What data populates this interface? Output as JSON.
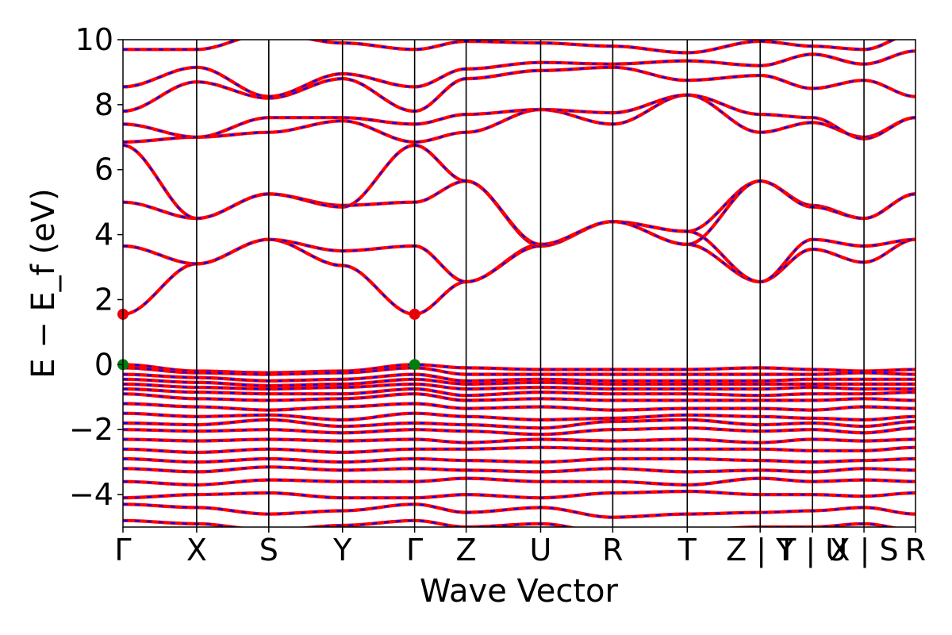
{
  "chart_data": {
    "type": "line",
    "xlabel": "Wave Vector",
    "ylabel": "E − E_f (eV)",
    "ylim": [
      -5,
      10
    ],
    "yticks": [
      -4,
      -2,
      0,
      2,
      4,
      6,
      8,
      10
    ],
    "kpoints": [
      {
        "label": "Γ",
        "x": 0.0
      },
      {
        "label": "X",
        "x": 0.93
      },
      {
        "label": "S",
        "x": 1.84
      },
      {
        "label": "Y",
        "x": 2.77
      },
      {
        "label": "Γ",
        "x": 3.68
      },
      {
        "label": "Z",
        "x": 4.33
      },
      {
        "label": "U",
        "x": 5.27
      },
      {
        "label": "R",
        "x": 6.18
      },
      {
        "label": "T",
        "x": 7.12
      },
      {
        "label": "Z | Y",
        "x": 8.04
      },
      {
        "label": "T | U",
        "x": 8.7
      },
      {
        "label": "X | S",
        "x": 9.35
      },
      {
        "label": "R",
        "x": 10.0
      }
    ],
    "xrange": [
      0,
      10.0
    ],
    "spin_up_color": "#ff0000",
    "spin_down_color": "#0000ff",
    "marker_colors": {
      "cbm": "#e8000b",
      "vbm": "#00800a"
    },
    "cbm_points": [
      {
        "x": 0.0,
        "y": 1.55
      },
      {
        "x": 3.68,
        "y": 1.55
      }
    ],
    "vbm_points": [
      {
        "x": 0.0,
        "y": 0.0
      },
      {
        "x": 3.68,
        "y": 0.0
      }
    ],
    "conduction_bands": [
      [
        1.55,
        3.1,
        3.85,
        3.05,
        1.55,
        2.55,
        3.7,
        4.4,
        3.7,
        2.55,
        3.55,
        3.15,
        3.85,
        4.4
      ],
      [
        3.65,
        3.1,
        3.85,
        3.5,
        3.65,
        2.55,
        3.65,
        4.4,
        4.1,
        2.55,
        3.85,
        3.65,
        3.85,
        4.4
      ],
      [
        5.0,
        4.5,
        5.25,
        4.9,
        5.0,
        5.65,
        3.65,
        4.4,
        4.1,
        5.65,
        4.9,
        4.5,
        5.25,
        4.4
      ],
      [
        6.75,
        4.5,
        5.25,
        4.85,
        6.75,
        5.65,
        3.7,
        4.4,
        3.7,
        5.65,
        4.85,
        4.5,
        5.25,
        4.4
      ],
      [
        6.85,
        7.0,
        7.15,
        7.5,
        6.85,
        7.15,
        7.85,
        7.4,
        8.3,
        7.15,
        7.45,
        7.0,
        7.6,
        7.4
      ],
      [
        7.4,
        7.0,
        7.6,
        7.6,
        7.4,
        7.7,
        7.85,
        7.75,
        8.3,
        7.7,
        7.6,
        6.95,
        7.6,
        7.7
      ],
      [
        7.8,
        8.7,
        8.2,
        8.8,
        7.8,
        8.8,
        9.05,
        9.15,
        8.75,
        8.9,
        8.5,
        8.75,
        8.25,
        9.3
      ],
      [
        8.55,
        9.15,
        8.25,
        8.95,
        8.55,
        9.1,
        9.3,
        9.25,
        9.35,
        9.2,
        9.55,
        9.25,
        9.65,
        9.3
      ],
      [
        9.7,
        9.7,
        10.2,
        9.9,
        9.7,
        9.95,
        9.9,
        9.8,
        9.6,
        9.95,
        9.8,
        9.7,
        10.2,
        10.3
      ]
    ],
    "valence_bands": [
      [
        0.0,
        -0.2,
        -0.25,
        -0.2,
        0.0,
        -0.1,
        -0.15,
        -0.15,
        -0.15,
        -0.1,
        -0.15,
        -0.2,
        -0.15,
        -0.1
      ],
      [
        -0.1,
        -0.25,
        -0.3,
        -0.25,
        -0.1,
        -0.3,
        -0.3,
        -0.3,
        -0.3,
        -0.3,
        -0.3,
        -0.25,
        -0.3,
        -0.3
      ],
      [
        -0.3,
        -0.4,
        -0.5,
        -0.45,
        -0.3,
        -0.5,
        -0.45,
        -0.5,
        -0.5,
        -0.5,
        -0.45,
        -0.45,
        -0.45,
        -0.5
      ],
      [
        -0.45,
        -0.55,
        -0.65,
        -0.6,
        -0.45,
        -0.6,
        -0.55,
        -0.6,
        -0.6,
        -0.6,
        -0.6,
        -0.6,
        -0.6,
        -0.6
      ],
      [
        -0.6,
        -0.7,
        -0.75,
        -0.7,
        -0.6,
        -0.75,
        -0.7,
        -0.75,
        -0.75,
        -0.75,
        -0.7,
        -0.75,
        -0.75,
        -0.75
      ],
      [
        -0.75,
        -0.85,
        -0.9,
        -0.9,
        -0.75,
        -0.95,
        -0.85,
        -0.9,
        -0.9,
        -0.95,
        -0.9,
        -0.9,
        -0.85,
        -0.9
      ],
      [
        -0.9,
        -1.05,
        -1.1,
        -1.05,
        -0.9,
        -1.1,
        -1.05,
        -1.1,
        -1.1,
        -1.1,
        -1.1,
        -1.05,
        -1.1,
        -1.1
      ],
      [
        -1.2,
        -1.3,
        -1.4,
        -1.3,
        -1.2,
        -1.35,
        -1.3,
        -1.4,
        -1.35,
        -1.35,
        -1.4,
        -1.3,
        -1.35,
        -1.3
      ],
      [
        -1.5,
        -1.6,
        -1.55,
        -1.7,
        -1.5,
        -1.6,
        -1.7,
        -1.65,
        -1.55,
        -1.6,
        -1.65,
        -1.7,
        -1.6,
        -1.65
      ],
      [
        -1.8,
        -1.85,
        -1.7,
        -1.9,
        -1.8,
        -1.85,
        -1.95,
        -1.75,
        -1.7,
        -1.85,
        -1.8,
        -1.9,
        -1.75,
        -1.8
      ],
      [
        -2.0,
        -2.05,
        -2.0,
        -2.1,
        -2.0,
        -2.05,
        -2.15,
        -2.0,
        -1.95,
        -2.05,
        -2.0,
        -2.1,
        -1.95,
        -1.95
      ],
      [
        -2.3,
        -2.35,
        -2.3,
        -2.35,
        -2.3,
        -2.4,
        -2.3,
        -2.35,
        -2.3,
        -2.4,
        -2.3,
        -2.35,
        -2.3,
        -2.4
      ],
      [
        -2.6,
        -2.7,
        -2.6,
        -2.7,
        -2.6,
        -2.6,
        -2.55,
        -2.6,
        -2.6,
        -2.6,
        -2.65,
        -2.65,
        -2.55,
        -2.6
      ],
      [
        -2.9,
        -3.0,
        -2.9,
        -3.0,
        -2.9,
        -2.95,
        -3.0,
        -2.9,
        -2.9,
        -2.95,
        -3.0,
        -2.95,
        -2.9,
        -2.9
      ],
      [
        -3.2,
        -3.3,
        -3.15,
        -3.25,
        -3.2,
        -3.25,
        -3.3,
        -3.2,
        -3.3,
        -3.25,
        -3.3,
        -3.2,
        -3.25,
        -3.2
      ],
      [
        -3.6,
        -3.7,
        -3.55,
        -3.6,
        -3.6,
        -3.5,
        -3.6,
        -3.6,
        -3.7,
        -3.5,
        -3.6,
        -3.55,
        -3.6,
        -3.6
      ],
      [
        -4.1,
        -4.0,
        -3.95,
        -4.1,
        -4.1,
        -4.0,
        -4.1,
        -3.95,
        -3.9,
        -4.0,
        -4.0,
        -4.05,
        -3.95,
        -3.95
      ],
      [
        -4.3,
        -4.4,
        -4.6,
        -4.5,
        -4.3,
        -4.55,
        -4.4,
        -4.7,
        -4.6,
        -4.55,
        -4.5,
        -4.4,
        -4.6,
        -4.5
      ],
      [
        -4.8,
        -4.9,
        -5.1,
        -4.95,
        -4.8,
        -5.0,
        -4.9,
        -5.2,
        -5.1,
        -5.0,
        -5.0,
        -4.9,
        -5.1,
        -5.2
      ]
    ]
  }
}
